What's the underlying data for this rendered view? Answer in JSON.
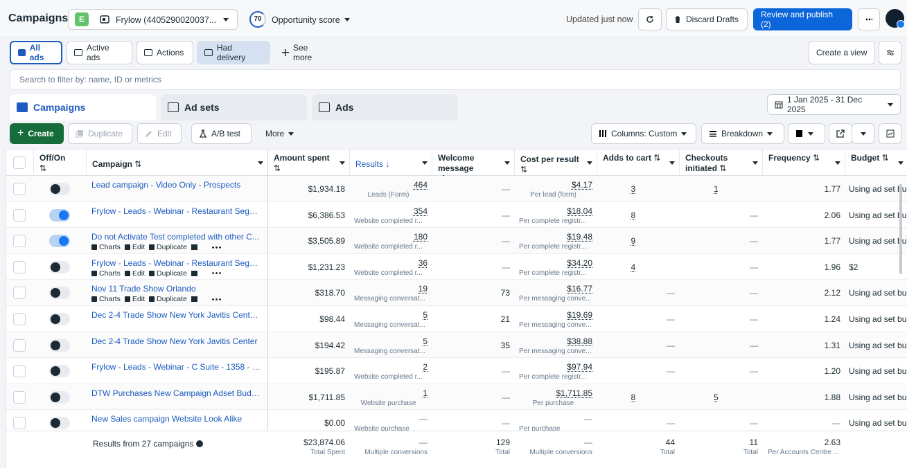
{
  "header": {
    "title": "Campaigns",
    "account_badge": "E",
    "account": "Frylow (4405290020037...",
    "score": "70",
    "score_label": "Opportunity score",
    "updated": "Updated just now",
    "discard": "Discard Drafts",
    "publish": "Review and publish (2)"
  },
  "filters": {
    "items": [
      "All ads",
      "Active ads",
      "Actions",
      "Had delivery",
      "See more"
    ],
    "create_view": "Create a view"
  },
  "search_placeholder": "Search to filter by: name, ID or metrics",
  "tabs": {
    "items": [
      "Campaigns",
      "Ad sets",
      "Ads"
    ],
    "date_range": "1 Jan 2025 - 31 Dec 2025"
  },
  "toolbar": {
    "create": "Create",
    "duplicate": "Duplicate",
    "edit": "Edit",
    "ab_test": "A/B test",
    "more": "More",
    "columns": "Columns: Custom",
    "breakdown": "Breakdown"
  },
  "table": {
    "columns": [
      "Off/On",
      "Campaign",
      "Amount spent",
      "Results",
      "Welcome message view...",
      "Cost per result",
      "Adds to cart",
      "Checkouts initiated",
      "Frequency",
      "Budget"
    ],
    "row_actions": [
      "Charts",
      "Edit",
      "Duplicate"
    ],
    "rows": [
      {
        "on": false,
        "actions": false,
        "name": "Lead campaign - Video Only - Prospects",
        "spent": "$1,934.18",
        "results": "464",
        "results_sub": "Leads (Form)",
        "welcome": "—",
        "cost": "$4.17",
        "cost_sub": "Per lead (form)",
        "adds": "3",
        "checkouts": "1",
        "frequency": "1.77",
        "budget": "Using ad set bu"
      },
      {
        "on": true,
        "actions": false,
        "name": "Frylow - Leads - Webinar - Restaurant Segme...",
        "spent": "$6,386.53",
        "results": "354",
        "results_sub": "Website completed r...",
        "welcome": "—",
        "cost": "$18.04",
        "cost_sub": "Per complete registr...",
        "adds": "8",
        "checkouts": "—",
        "frequency": "2.06",
        "budget": "Using ad set bu"
      },
      {
        "on": true,
        "actions": true,
        "name": "Do not Activate Test completed with other C...",
        "spent": "$3,505.89",
        "results": "180",
        "results_sub": "Website completed r...",
        "welcome": "—",
        "cost": "$19.48",
        "cost_sub": "Per complete registr...",
        "adds": "9",
        "checkouts": "—",
        "frequency": "1.77",
        "budget": "Using ad set bu"
      },
      {
        "on": false,
        "actions": true,
        "name": "Frylow - Leads - Webinar - Restaurant Segme...",
        "spent": "$1,231.23",
        "results": "36",
        "results_sub": "Website completed r...",
        "welcome": "—",
        "cost": "$34.20",
        "cost_sub": "Per complete registr...",
        "adds": "4",
        "checkouts": "—",
        "frequency": "1.96",
        "budget": "$2"
      },
      {
        "on": false,
        "actions": true,
        "name": "Nov 11 Trade Show Orlando",
        "spent": "$318.70",
        "results": "19",
        "results_sub": "Messaging conversat...",
        "welcome": "73",
        "cost": "$16.77",
        "cost_sub": "Per messaging conve...",
        "adds": "—",
        "checkouts": "—",
        "frequency": "2.12",
        "budget": "Using ad set bu"
      },
      {
        "on": false,
        "actions": false,
        "name": "Dec 2-4 Trade Show New York Javitis Center ...",
        "spent": "$98.44",
        "results": "5",
        "results_sub": "Messaging conversat...",
        "welcome": "21",
        "cost": "$19.69",
        "cost_sub": "Per messaging conve...",
        "adds": "—",
        "checkouts": "—",
        "frequency": "1.24",
        "budget": "Using ad set bu"
      },
      {
        "on": false,
        "actions": false,
        "name": "Dec 2-4 Trade Show New York Javitis Center",
        "spent": "$194.42",
        "results": "5",
        "results_sub": "Messaging conversat...",
        "welcome": "35",
        "cost": "$38.88",
        "cost_sub": "Per messaging conve...",
        "adds": "—",
        "checkouts": "—",
        "frequency": "1.31",
        "budget": "Using ad set bu"
      },
      {
        "on": false,
        "actions": false,
        "name": "Frylow - Leads - Webinar - C Suite - 1358 - Vi...",
        "spent": "$195.87",
        "results": "2",
        "results_sub": "Website completed r...",
        "welcome": "—",
        "cost": "$97.94",
        "cost_sub": "Per complete registr...",
        "adds": "—",
        "checkouts": "—",
        "frequency": "1.20",
        "budget": "Using ad set bu"
      },
      {
        "on": false,
        "actions": false,
        "name": "DTW Purchases New Campaign Adset Budge...",
        "spent": "$1,711.85",
        "results": "1",
        "results_sub": "Website purchase",
        "welcome": "—",
        "cost": "$1,711.85",
        "cost_sub": "Per purchase",
        "adds": "8",
        "checkouts": "5",
        "frequency": "1.88",
        "budget": "Using ad set bu"
      },
      {
        "on": false,
        "actions": false,
        "name": "New Sales campaign Website Look Alike",
        "spent": "$0.00",
        "results": "—",
        "results_sub": "Website purchase",
        "welcome": "—",
        "cost": "—",
        "cost_sub": "Per purchase",
        "adds": "—",
        "checkouts": "—",
        "frequency": "—",
        "budget": "Using ad set bu"
      }
    ],
    "totals": {
      "label": "Results from 27 campaigns",
      "spent": "$23,874.06",
      "spent_sub": "Total Spent",
      "results": "—",
      "results_sub": "Multiple conversions",
      "welcome": "129",
      "welcome_sub": "Total",
      "cost": "—",
      "cost_sub": "Multiple conversions",
      "adds": "44",
      "adds_sub": "Total",
      "checkouts": "11",
      "checkouts_sub": "Total",
      "frequency": "2.63",
      "frequency_sub": "Per Accounts Centre ..."
    }
  }
}
